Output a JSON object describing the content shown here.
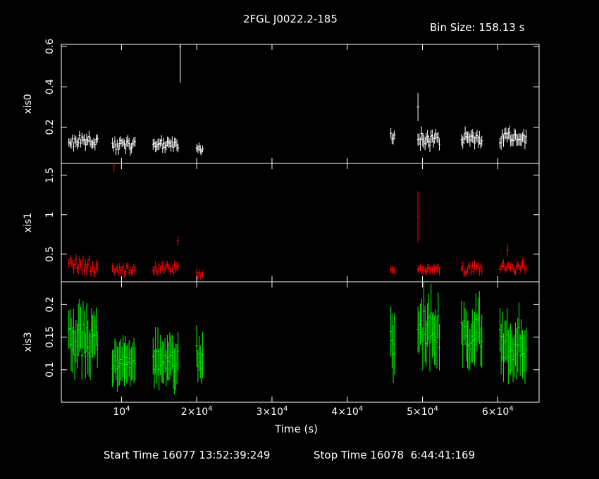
{
  "header": {
    "title": "2FGL J0022.2-185",
    "bin_size": "Bin Size: 158.13 s"
  },
  "footer": {
    "start_time": "Start Time 16077 13:52:39:249",
    "stop_time": "Stop Time 16078  6:44:41:169"
  },
  "colors": {
    "xis0": "#ffffff",
    "xis1": "#ff0000",
    "xis3": "#00ff00",
    "frame": "#ffffff",
    "background": "#000000"
  },
  "chart_data": {
    "type": "scatter",
    "title": "2FGL J0022.2-185",
    "xlabel": "Time (s)",
    "xlim": [
      2000,
      65500
    ],
    "x_ticks": [
      {
        "value": 10000,
        "label": "10^4"
      },
      {
        "value": 20000,
        "label": "2×10^4"
      },
      {
        "value": 30000,
        "label": "3×10^4"
      },
      {
        "value": 40000,
        "label": "4×10^4"
      },
      {
        "value": 50000,
        "label": "5×10^4"
      },
      {
        "value": 60000,
        "label": "6×10^4"
      }
    ],
    "panels": [
      {
        "name": "xis0",
        "ylabel": "xis0",
        "color": "#ffffff",
        "ylim": [
          0.02,
          0.61
        ],
        "y_ticks": [
          {
            "value": 0.2,
            "label": "0.2"
          },
          {
            "value": 0.4,
            "label": "0.4"
          },
          {
            "value": 0.6,
            "label": "0.6"
          }
        ],
        "segments": [
          {
            "start": 3000,
            "end": 6800,
            "mean": 0.13,
            "spread": 0.03,
            "err": 0.025
          },
          {
            "start": 8800,
            "end": 11900,
            "mean": 0.11,
            "spread": 0.025,
            "err": 0.025
          },
          {
            "start": 14200,
            "end": 17600,
            "mean": 0.12,
            "spread": 0.025,
            "err": 0.025
          },
          {
            "start": 20000,
            "end": 20900,
            "mean": 0.09,
            "spread": 0.015,
            "err": 0.02
          },
          {
            "start": 45800,
            "end": 46400,
            "mean": 0.15,
            "spread": 0.02,
            "err": 0.025
          },
          {
            "start": 49400,
            "end": 52300,
            "mean": 0.14,
            "spread": 0.03,
            "err": 0.03
          },
          {
            "start": 55200,
            "end": 58000,
            "mean": 0.14,
            "spread": 0.03,
            "err": 0.03
          },
          {
            "start": 60300,
            "end": 63800,
            "mean": 0.15,
            "spread": 0.03,
            "err": 0.03
          }
        ],
        "outliers": [
          {
            "x": 17800,
            "y": 0.6,
            "err": 0.18
          },
          {
            "x": 49400,
            "y": 0.3,
            "err": 0.07
          }
        ]
      },
      {
        "name": "xis1",
        "ylabel": "xis1",
        "color": "#ff0000",
        "ylim": [
          0.15,
          1.65
        ],
        "y_ticks": [
          {
            "value": 0.5,
            "label": "0.5"
          },
          {
            "value": 1,
            "label": "1"
          },
          {
            "value": 1.5,
            "label": "1.5"
          }
        ],
        "segments": [
          {
            "start": 3000,
            "end": 6800,
            "mean": 0.35,
            "spread": 0.09,
            "err": 0.06
          },
          {
            "start": 8800,
            "end": 11900,
            "mean": 0.3,
            "spread": 0.06,
            "err": 0.05
          },
          {
            "start": 14200,
            "end": 17600,
            "mean": 0.32,
            "spread": 0.05,
            "err": 0.05
          },
          {
            "start": 20000,
            "end": 20900,
            "mean": 0.24,
            "spread": 0.03,
            "err": 0.04
          },
          {
            "start": 45800,
            "end": 46400,
            "mean": 0.3,
            "spread": 0.04,
            "err": 0.05
          },
          {
            "start": 49400,
            "end": 52300,
            "mean": 0.31,
            "spread": 0.03,
            "err": 0.05
          },
          {
            "start": 55200,
            "end": 58000,
            "mean": 0.3,
            "spread": 0.06,
            "err": 0.05
          },
          {
            "start": 60300,
            "end": 63800,
            "mean": 0.33,
            "spread": 0.06,
            "err": 0.05
          }
        ],
        "outliers": [
          {
            "x": 9000,
            "y": 1.62,
            "err": 0.08
          },
          {
            "x": 17500,
            "y": 0.67,
            "err": 0.06
          },
          {
            "x": 49400,
            "y": 0.97,
            "err": 0.33
          },
          {
            "x": 61300,
            "y": 0.55,
            "err": 0.07
          }
        ]
      },
      {
        "name": "xis3",
        "ylabel": "xis3",
        "color": "#00ff00",
        "ylim": [
          0.05,
          0.235
        ],
        "y_ticks": [
          {
            "value": 0.1,
            "label": "0.1"
          },
          {
            "value": 0.15,
            "label": "0.15"
          },
          {
            "value": 0.2,
            "label": "0.2"
          }
        ],
        "segments": [
          {
            "start": 3000,
            "end": 6800,
            "mean": 0.145,
            "spread": 0.025,
            "err": 0.035
          },
          {
            "start": 8800,
            "end": 11900,
            "mean": 0.11,
            "spread": 0.012,
            "err": 0.03
          },
          {
            "start": 14200,
            "end": 17600,
            "mean": 0.115,
            "spread": 0.018,
            "err": 0.032
          },
          {
            "start": 20000,
            "end": 20900,
            "mean": 0.12,
            "spread": 0.02,
            "err": 0.03
          },
          {
            "start": 45800,
            "end": 46400,
            "mean": 0.15,
            "spread": 0.03,
            "err": 0.04
          },
          {
            "start": 49400,
            "end": 52300,
            "mean": 0.16,
            "spread": 0.03,
            "err": 0.04
          },
          {
            "start": 55200,
            "end": 58000,
            "mean": 0.155,
            "spread": 0.025,
            "err": 0.035
          },
          {
            "start": 60300,
            "end": 63800,
            "mean": 0.14,
            "spread": 0.025,
            "err": 0.035
          }
        ],
        "outliers": []
      }
    ]
  }
}
